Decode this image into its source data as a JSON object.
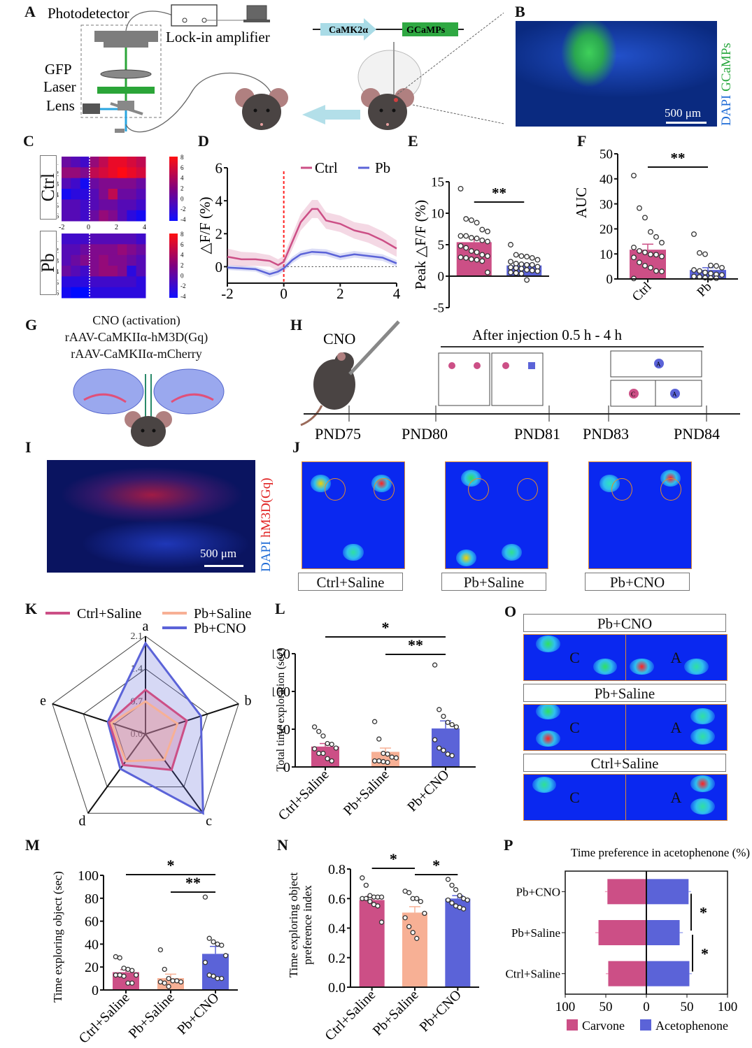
{
  "panels": {
    "A": {
      "label": "A",
      "photodetector": "Photodetector",
      "lockin": "Lock-in amplifier",
      "gfp": "GFP",
      "laser": "Laser",
      "lens": "Lens",
      "promoter": "CaMK2α",
      "indicator": "GCaMPs"
    },
    "B": {
      "label": "B",
      "stain_green": "GCaMPs",
      "stain_blue": "DAPI",
      "scale": "500 μm"
    },
    "C": {
      "label": "C",
      "groups": [
        "Ctrl",
        "Pb"
      ],
      "rows": [
        "1",
        "2",
        "3",
        "4",
        "5",
        "6"
      ],
      "xticks": [
        "-2",
        "0",
        "2",
        "4"
      ],
      "cbar_ticks": [
        "8",
        "6",
        "4",
        "2",
        "0",
        "-2",
        "-4"
      ]
    },
    "G": {
      "label": "G",
      "line1": "CNO (activation)",
      "line2": "rAAV-CaMKIIα-hM3D(Gq)",
      "line3": "rAAV-CaMKIIα-mCherry"
    },
    "H": {
      "label": "H",
      "cno": "CNO",
      "window": "After injection 0.5 h - 4 h",
      "timepoints": [
        "PND75",
        "PND80",
        "PND81",
        "PND83",
        "PND84"
      ],
      "obj_c": "C",
      "obj_a": "A"
    },
    "I": {
      "label": "I",
      "stain_red": "hM3D(Gq)",
      "stain_blue": "DAPI",
      "scale": "500 μm"
    },
    "J": {
      "label": "J",
      "groups": [
        "Ctrl+Saline",
        "Pb+Saline",
        "Pb+CNO"
      ]
    },
    "O": {
      "label": "O",
      "groups": [
        "Pb+CNO",
        "Pb+Saline",
        "Ctrl+Saline"
      ],
      "left": "C",
      "right": "A"
    }
  },
  "colors": {
    "ctrl": "#cc4f86",
    "pb": "#5b63d8",
    "pb_saline": "#f7b095",
    "pb_cno": "#5b63d8",
    "red_dash": "#ff2020"
  },
  "chart_data": [
    {
      "id": "D",
      "label": "D",
      "type": "line",
      "title": "",
      "xlabel": "",
      "ylabel": "△F/F (%)",
      "xlim": [
        -2,
        4
      ],
      "ylim": [
        -1,
        6
      ],
      "xticks": [
        -2,
        0,
        2,
        4
      ],
      "yticks": [
        0,
        2,
        4,
        6
      ],
      "legend": "top-right",
      "series": [
        {
          "name": "Ctrl",
          "x": [
            -2,
            -1.5,
            -1,
            -0.5,
            -0.2,
            0,
            0.3,
            0.6,
            1,
            1.2,
            1.5,
            2,
            2.5,
            3,
            3.5,
            4
          ],
          "y": [
            0.6,
            0.45,
            0.45,
            0.35,
            0.1,
            0.3,
            1.5,
            2.7,
            3.5,
            3.5,
            2.8,
            2.6,
            2.2,
            2.0,
            1.6,
            1.1
          ],
          "err": [
            0.5,
            0.45,
            0.4,
            0.35,
            0.35,
            0.35,
            0.45,
            0.5,
            0.55,
            0.55,
            0.5,
            0.5,
            0.5,
            0.55,
            0.55,
            0.5
          ]
        },
        {
          "name": "Pb",
          "x": [
            -2,
            -1.5,
            -1,
            -0.5,
            -0.2,
            0,
            0.3,
            0.6,
            1,
            1.5,
            2,
            2.5,
            3,
            3.5,
            4
          ],
          "y": [
            -0.05,
            -0.1,
            -0.15,
            -0.45,
            -0.3,
            -0.1,
            0.4,
            0.75,
            0.9,
            0.85,
            0.6,
            0.75,
            0.65,
            0.55,
            0.2
          ],
          "err": [
            0.15,
            0.15,
            0.15,
            0.2,
            0.2,
            0.2,
            0.2,
            0.2,
            0.2,
            0.2,
            0.2,
            0.2,
            0.2,
            0.2,
            0.2
          ]
        }
      ],
      "annotations": [
        {
          "type": "vline",
          "x": 0,
          "style": "red-dashed"
        },
        {
          "type": "hline",
          "y": 0,
          "style": "dotted"
        }
      ]
    },
    {
      "id": "E",
      "label": "E",
      "type": "bar",
      "ylabel": "Peak △F/F (%)",
      "ylim": [
        -5,
        15
      ],
      "yticks": [
        -5,
        0,
        5,
        10,
        15
      ],
      "categories": [
        "Ctrl",
        "Pb"
      ],
      "values": [
        5.4,
        1.7
      ],
      "sem": [
        0.6,
        0.3
      ],
      "points": [
        [
          13.9,
          9.1,
          8.9,
          8.5,
          7.4,
          7.1,
          6.4,
          6.4,
          6.1,
          6.0,
          5.7,
          5.5,
          4.8,
          4.5,
          4.0,
          3.8,
          3.4,
          3.2,
          3.0,
          2.9,
          2.7,
          2.6,
          2.4,
          0.6
        ],
        [
          5.0,
          3.4,
          3.2,
          3.1,
          2.9,
          2.6,
          2.3,
          2.0,
          1.9,
          1.8,
          1.8,
          1.5,
          1.4,
          1.3,
          1.2,
          1.0,
          0.9,
          0.8,
          0.6,
          0.5,
          0.4,
          -0.6
        ]
      ],
      "significance": [
        {
          "groups": [
            0,
            1
          ],
          "label": "**"
        }
      ]
    },
    {
      "id": "F",
      "label": "F",
      "type": "bar",
      "ylabel": "AUC",
      "ylim": [
        0,
        50
      ],
      "yticks": [
        0,
        10,
        20,
        30,
        40,
        50
      ],
      "categories": [
        "Ctrl",
        "Pb"
      ],
      "values": [
        11.7,
        3.6
      ],
      "sem": [
        2.2,
        0.9
      ],
      "points": [
        [
          41.3,
          28.3,
          24.5,
          18.8,
          16.8,
          14.5,
          12.6,
          11.2,
          10.6,
          9.8,
          9.7,
          9.0,
          8.6,
          6.6,
          5.3,
          4.5,
          3.2,
          3.0,
          0.2
        ],
        [
          17.9,
          10.4,
          9.9,
          5.4,
          5.2,
          4.5,
          3.6,
          3.2,
          2.6,
          2.2,
          1.8,
          1.6,
          1.0,
          0.8,
          0.5,
          0.4,
          0.3
        ]
      ],
      "significance": [
        {
          "groups": [
            0,
            1
          ],
          "label": "**"
        }
      ]
    },
    {
      "id": "K",
      "label": "K",
      "type": "radar",
      "axes": [
        "a",
        "b",
        "c",
        "d",
        "e"
      ],
      "rlim": [
        0,
        2.1
      ],
      "rticks": [
        "0.0",
        "0.7",
        "1.4",
        "2.1"
      ],
      "legend": "top",
      "series": [
        {
          "name": "Ctrl+Saline",
          "values": [
            0.95,
            0.93,
            0.95,
            0.82,
            0.82
          ]
        },
        {
          "name": "Pb+Saline",
          "values": [
            0.7,
            0.72,
            0.68,
            0.72,
            0.77
          ]
        },
        {
          "name": "Pb+CNO",
          "values": [
            1.95,
            1.25,
            2.1,
            0.92,
            0.85
          ]
        }
      ]
    },
    {
      "id": "L",
      "label": "L",
      "type": "bar",
      "ylabel": "Total time exploration (sec)",
      "ylim": [
        0,
        150
      ],
      "yticks": [
        0,
        50,
        100,
        150
      ],
      "categories": [
        "Ctrl+Saline",
        "Pb+Saline",
        "Pb+CNO"
      ],
      "values": [
        27,
        20,
        51
      ],
      "sem": [
        4,
        5,
        10
      ],
      "points": [
        [
          53,
          47,
          41,
          31,
          30,
          25,
          24,
          18,
          18,
          11,
          8
        ],
        [
          60,
          37,
          18,
          17,
          13,
          12,
          8,
          8,
          7,
          6
        ],
        [
          135,
          76,
          67,
          59,
          56,
          53,
          36,
          25,
          22,
          17,
          15
        ]
      ],
      "significance": [
        {
          "groups": [
            0,
            2
          ],
          "label": "*"
        },
        {
          "groups": [
            1,
            2
          ],
          "label": "**"
        }
      ]
    },
    {
      "id": "M",
      "label": "M",
      "type": "bar",
      "ylabel": "Time exploring object (sec)",
      "ylim": [
        0,
        100
      ],
      "yticks": [
        0,
        20,
        40,
        60,
        80,
        100
      ],
      "categories": [
        "Ctrl+Saline",
        "Pb+Saline",
        "Pb+CNO"
      ],
      "values": [
        15.5,
        10.3,
        31.5
      ],
      "sem": [
        2.2,
        3.5,
        6.5
      ],
      "points": [
        [
          29,
          28,
          19,
          18,
          17,
          13,
          13,
          13,
          12,
          6,
          6
        ],
        [
          35,
          18,
          10,
          8,
          8,
          7,
          7,
          6,
          3
        ],
        [
          81,
          45,
          42,
          40,
          39,
          30,
          24,
          13,
          12,
          10,
          10
        ]
      ],
      "significance": [
        {
          "groups": [
            0,
            2
          ],
          "label": "*"
        },
        {
          "groups": [
            1,
            2
          ],
          "label": "**"
        }
      ]
    },
    {
      "id": "N",
      "label": "N",
      "type": "bar",
      "ylabel": "Time exploring object preference index",
      "ylim": [
        0,
        0.8
      ],
      "yticks": [
        "0.0",
        "0.2",
        "0.4",
        "0.6",
        "0.8"
      ],
      "categories": [
        "Ctrl+Saline",
        "Pb+Saline",
        "Pb+CNO"
      ],
      "values": [
        0.59,
        0.505,
        0.6
      ],
      "sem": [
        0.025,
        0.04,
        0.02
      ],
      "points": [
        [
          0.74,
          0.69,
          0.62,
          0.61,
          0.61,
          0.61,
          0.6,
          0.6,
          0.58,
          0.56,
          0.55,
          0.44
        ],
        [
          0.65,
          0.64,
          0.6,
          0.6,
          0.58,
          0.5,
          0.47,
          0.41,
          0.37,
          0.33
        ],
        [
          0.73,
          0.69,
          0.66,
          0.62,
          0.6,
          0.59,
          0.59,
          0.57,
          0.55,
          0.54,
          0.53
        ]
      ],
      "significance": [
        {
          "groups": [
            0,
            1
          ],
          "label": "*"
        },
        {
          "groups": [
            1,
            2
          ],
          "label": "*"
        }
      ]
    },
    {
      "id": "P",
      "label": "P",
      "type": "bar-horizontal-diverging",
      "title": "Time preference in acetophenone (%)",
      "xlim": [
        -100,
        100
      ],
      "xticks": [
        "100",
        "50",
        "0",
        "50",
        "100"
      ],
      "categories": [
        "Pb+CNO",
        "Pb+Saline",
        "Ctrl+Saline"
      ],
      "series": [
        {
          "name": "Carvone",
          "values": [
            48,
            59,
            47
          ],
          "sem": [
            3,
            4,
            3
          ]
        },
        {
          "name": "Acetophenone",
          "values": [
            52,
            41,
            53
          ],
          "sem": [
            3,
            4,
            3
          ]
        }
      ],
      "legend": "bottom",
      "significance": [
        {
          "groups": [
            0,
            1
          ],
          "label": "*"
        },
        {
          "groups": [
            1,
            2
          ],
          "label": "*"
        }
      ]
    }
  ]
}
